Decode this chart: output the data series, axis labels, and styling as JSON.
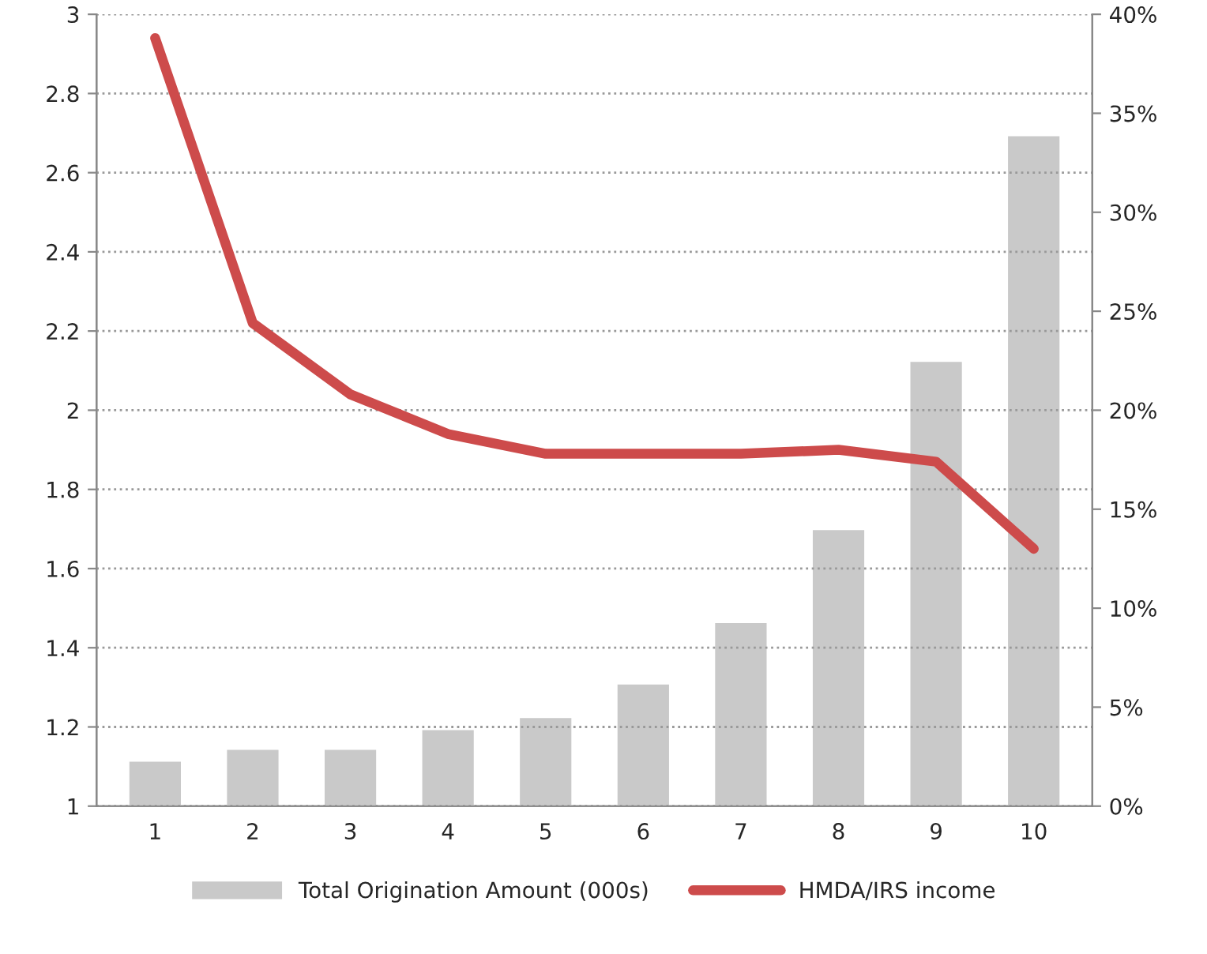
{
  "chart_data": {
    "type": "bar",
    "categories": [
      "1",
      "2",
      "3",
      "4",
      "5",
      "6",
      "7",
      "8",
      "9",
      "10"
    ],
    "series": [
      {
        "name": "Total Origination Amount (000s)",
        "axis": "y2",
        "color": "#c9c9c9",
        "values": [
          2.3,
          2.9,
          2.9,
          3.9,
          4.5,
          6.2,
          9.3,
          14.0,
          22.5,
          33.9
        ]
      },
      {
        "name": "HMDA/IRS income",
        "type": "line",
        "axis": "y",
        "color": "#cd4b4b",
        "values": [
          2.94,
          2.22,
          2.04,
          1.94,
          1.89,
          1.89,
          1.89,
          1.9,
          1.87,
          1.65
        ]
      }
    ],
    "ylim": [
      1,
      3
    ],
    "yticks": [
      1,
      1.2,
      1.4,
      1.6,
      1.8,
      2,
      2.2,
      2.4,
      2.6,
      2.8,
      3
    ],
    "y2lim": [
      0,
      40
    ],
    "y2ticks": [
      {
        "value": 0,
        "label": "0%"
      },
      {
        "value": 5,
        "label": "5%"
      },
      {
        "value": 10,
        "label": "10%"
      },
      {
        "value": 15,
        "label": "15%"
      },
      {
        "value": 20,
        "label": "20%"
      },
      {
        "value": 25,
        "label": "25%"
      },
      {
        "value": 30,
        "label": "30%"
      },
      {
        "value": 35,
        "label": "35%"
      },
      {
        "value": 40,
        "label": "40%"
      }
    ],
    "grid": "y",
    "legend": "bottom",
    "marker": "none",
    "line_style": "solid"
  }
}
